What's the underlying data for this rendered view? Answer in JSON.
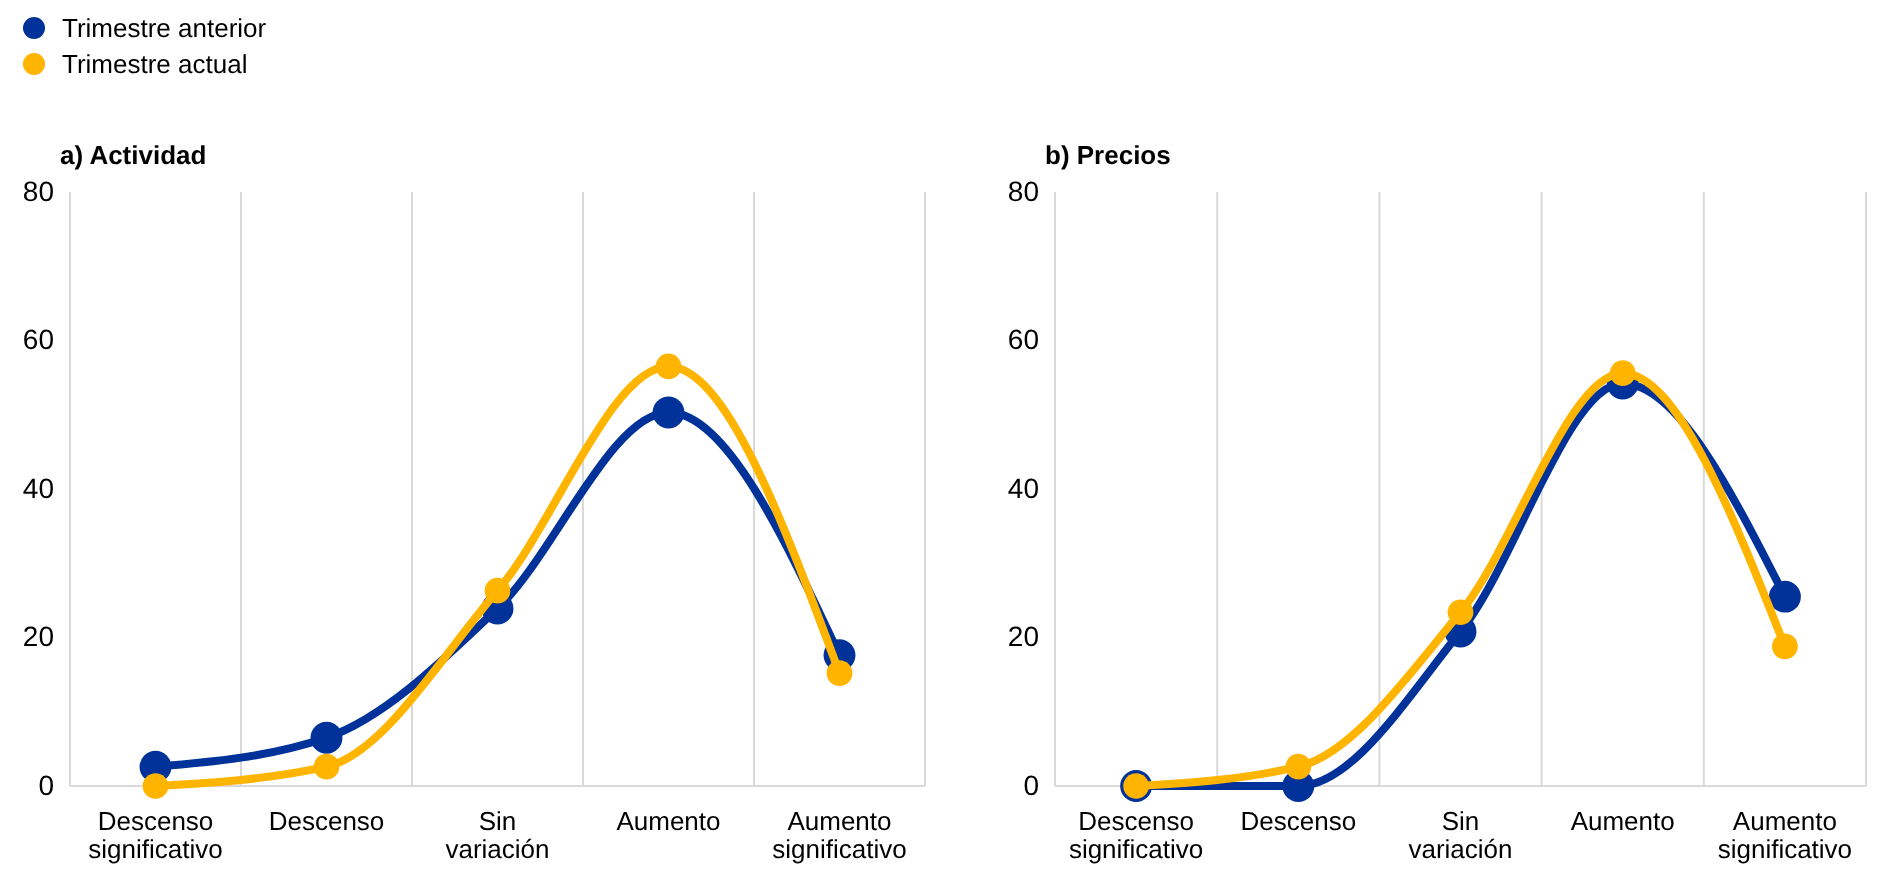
{
  "chart_data": [
    {
      "type": "line",
      "title": "a) Actividad",
      "categories": [
        "Descenso significativo",
        "Descenso",
        "Sin variación",
        "Aumento",
        "Aumento significativo"
      ],
      "series": [
        {
          "name": "Trimestre anterior",
          "color": "#003299",
          "values": [
            2.6,
            6.5,
            23.9,
            50.3,
            17.6
          ]
        },
        {
          "name": "Trimestre actual",
          "color": "#ffb400",
          "values": [
            0,
            2.6,
            26.3,
            56.5,
            15.2
          ]
        }
      ],
      "ylim": [
        0,
        80
      ],
      "yticks": [
        0,
        20,
        40,
        60,
        80
      ],
      "grid": "x",
      "legend": "top left",
      "marker": "circle",
      "line_style": "solid"
    },
    {
      "type": "line",
      "title": "b) Precios",
      "categories": [
        "Descenso significativo",
        "Descenso",
        "Sin variación",
        "Aumento",
        "Aumento significativo"
      ],
      "series": [
        {
          "color": "#003299",
          "values": [
            0,
            0,
            20.8,
            54.2,
            25.5
          ]
        },
        {
          "color": "#ffb400",
          "values": [
            0,
            2.6,
            23.4,
            55.6,
            18.8
          ]
        }
      ],
      "ylim": [
        0,
        80
      ],
      "yticks": [
        0,
        20,
        40,
        60,
        80
      ],
      "grid": "x",
      "marker": "circle",
      "line_style": "solid"
    }
  ]
}
